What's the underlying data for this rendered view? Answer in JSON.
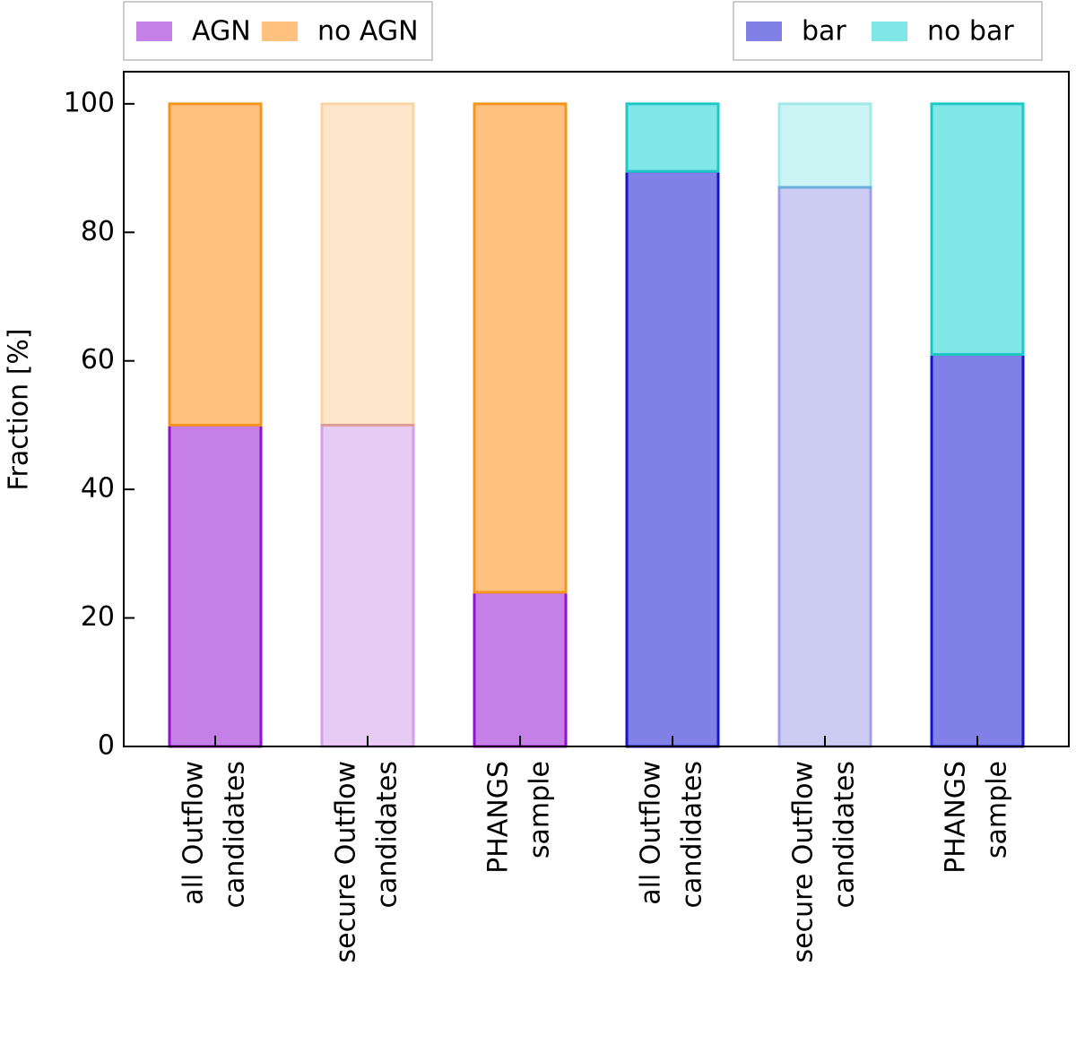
{
  "chart_data": {
    "type": "stacked_bar",
    "ylabel": "Fraction [%]",
    "categories": [
      [
        "all Outflow",
        "candidates"
      ],
      [
        "secure Outflow",
        "candidates"
      ],
      [
        "PHANGS",
        "sample"
      ],
      [
        "all Outflow",
        "candidates"
      ],
      [
        "secure Outflow",
        "candidates"
      ],
      [
        "PHANGS",
        "sample"
      ]
    ],
    "opacity": [
      1,
      0.4,
      1,
      1,
      0.4,
      1
    ],
    "series": [
      {
        "name": "AGN",
        "color": "#c77fe8",
        "edgecolor": "#9012d0",
        "legend": "upper left",
        "values": [
          50,
          50,
          24,
          null,
          null,
          null
        ]
      },
      {
        "name": "no AGN",
        "color": "#fec17f",
        "edgecolor": "#f5961c",
        "legend": "upper left",
        "values": [
          50,
          50,
          76,
          null,
          null,
          null
        ]
      },
      {
        "name": "bar",
        "color": "#8080e6",
        "edgecolor": "#1414c8",
        "legend": "upper right",
        "values": [
          null,
          null,
          null,
          89.5,
          87,
          61
        ]
      },
      {
        "name": "no bar",
        "color": "#80e6e6",
        "edgecolor": "#1ec8c8",
        "legend": "upper right",
        "values": [
          null,
          null,
          null,
          10.5,
          13,
          39
        ]
      }
    ],
    "ylim": [
      0,
      105
    ],
    "yticks": [
      0,
      20,
      40,
      60,
      80,
      100
    ],
    "grid": false
  }
}
